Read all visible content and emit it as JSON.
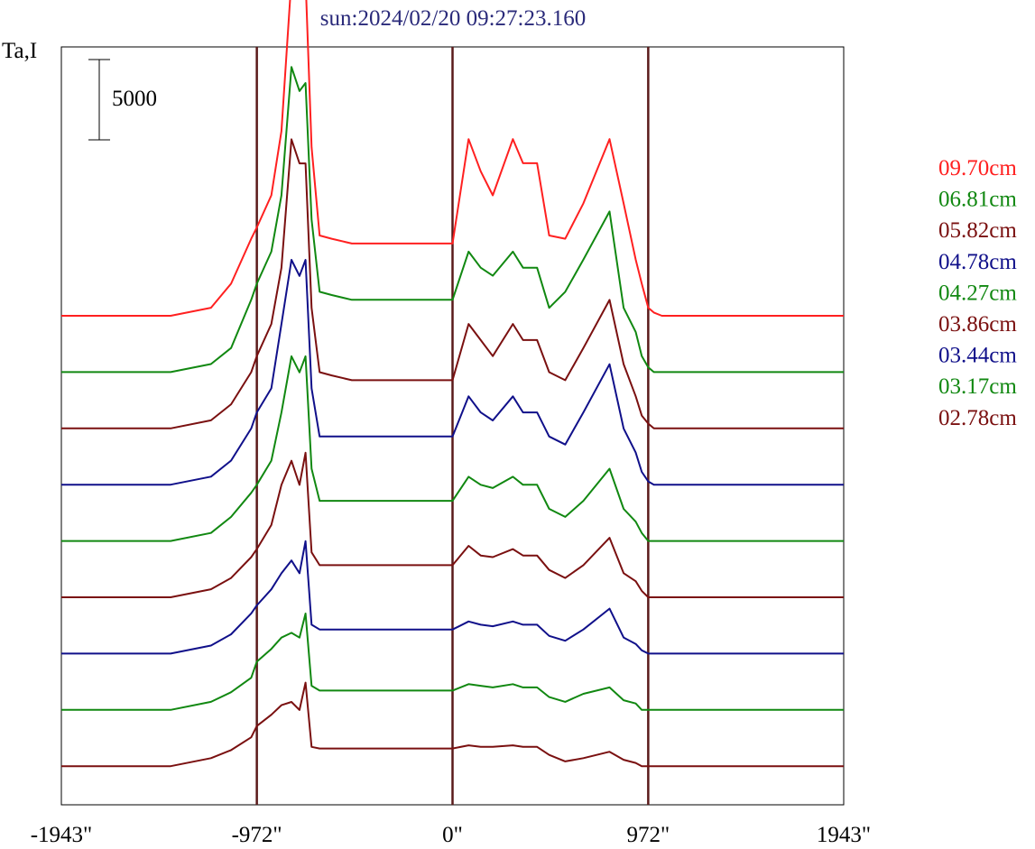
{
  "chart_data": {
    "type": "line",
    "title": "sun:2024/02/20 09:27:23.160",
    "ylabel": "Ta,I",
    "scale_bar": "5000",
    "xlim": [
      -1943,
      1943
    ],
    "x_ticks": [
      "-1943\"",
      "-972\"",
      "0\"",
      "972\"",
      "1943\""
    ],
    "tick_values": [
      -1943,
      -972,
      0,
      972,
      1943
    ],
    "vertical_lines": [
      -972,
      0,
      972
    ],
    "x": [
      -1943,
      -1400,
      -1200,
      -1100,
      -1000,
      -972,
      -900,
      -850,
      -800,
      -760,
      -730,
      -700,
      -660,
      -600,
      -500,
      -300,
      0,
      80,
      140,
      200,
      300,
      350,
      420,
      480,
      560,
      650,
      780,
      850,
      910,
      940,
      972,
      1000,
      1040,
      1080,
      1150,
      1300,
      1943
    ],
    "series": [
      {
        "name": "09.70cm",
        "color": "#ff2020",
        "values": [
          0,
          0,
          500,
          2000,
          4800,
          5500,
          7500,
          11500,
          21000,
          23500,
          21000,
          10500,
          5000,
          4800,
          4500,
          4500,
          4500,
          11000,
          9000,
          7500,
          11000,
          9500,
          9500,
          5000,
          4800,
          7000,
          11000,
          7000,
          3500,
          2000,
          500,
          200,
          0,
          0,
          0,
          0,
          0
        ]
      },
      {
        "name": "06.81cm",
        "color": "#118811",
        "values": [
          0,
          0,
          500,
          1500,
          4500,
          5500,
          7500,
          11000,
          19000,
          17500,
          18000,
          9500,
          5000,
          4800,
          4500,
          4500,
          4500,
          7500,
          6500,
          6000,
          7500,
          6500,
          6500,
          4000,
          5000,
          7000,
          10000,
          4000,
          2500,
          1000,
          300,
          0,
          0,
          0,
          0,
          0,
          0
        ]
      },
      {
        "name": "05.82cm",
        "color": "#7a1010",
        "values": [
          0,
          0,
          500,
          1500,
          3500,
          4500,
          6500,
          10000,
          18000,
          16500,
          16500,
          7500,
          3500,
          3300,
          3000,
          3000,
          3000,
          6500,
          5500,
          4500,
          6500,
          5500,
          5500,
          3500,
          3000,
          5000,
          8000,
          4000,
          2000,
          800,
          300,
          0,
          0,
          0,
          0,
          0,
          0
        ]
      },
      {
        "name": "04.78cm",
        "color": "#10108a",
        "values": [
          0,
          0,
          500,
          1500,
          3500,
          4500,
          6000,
          10000,
          14000,
          13000,
          14000,
          6000,
          3000,
          3000,
          3000,
          3000,
          3000,
          5500,
          4500,
          4000,
          5500,
          4500,
          4500,
          3000,
          2500,
          4500,
          7500,
          3500,
          2000,
          800,
          200,
          0,
          0,
          0,
          0,
          0,
          0
        ]
      },
      {
        "name": "04.27cm",
        "color": "#118811",
        "values": [
          0,
          0,
          500,
          1500,
          3000,
          3500,
          5000,
          8000,
          11500,
          10500,
          11500,
          4500,
          2500,
          2500,
          2500,
          2500,
          2500,
          4000,
          3500,
          3300,
          4000,
          3500,
          3500,
          2000,
          1500,
          2500,
          4500,
          2000,
          1200,
          500,
          0,
          0,
          0,
          0,
          0,
          0,
          0
        ]
      },
      {
        "name": "03.86cm",
        "color": "#7a1010",
        "values": [
          0,
          0,
          500,
          1200,
          2500,
          3000,
          4500,
          7000,
          8500,
          7000,
          9000,
          2800,
          2000,
          2000,
          2000,
          2000,
          2000,
          3200,
          2600,
          2500,
          3000,
          2600,
          2600,
          1700,
          1200,
          2000,
          3700,
          1500,
          1000,
          400,
          0,
          0,
          0,
          0,
          0,
          0,
          0
        ]
      },
      {
        "name": "03.44cm",
        "color": "#10108a",
        "values": [
          0,
          0,
          500,
          1200,
          2500,
          3000,
          4000,
          5000,
          5800,
          5000,
          7000,
          1800,
          1500,
          1500,
          1500,
          1500,
          1500,
          2000,
          1800,
          1700,
          2000,
          1800,
          1800,
          1100,
          800,
          1500,
          2800,
          1000,
          600,
          200,
          0,
          0,
          0,
          0,
          0,
          0,
          0
        ]
      },
      {
        "name": "03.17cm",
        "color": "#118811",
        "values": [
          0,
          0,
          500,
          1100,
          2000,
          3000,
          3800,
          4500,
          4800,
          4500,
          6000,
          1500,
          1200,
          1200,
          1200,
          1200,
          1200,
          1600,
          1500,
          1400,
          1600,
          1400,
          1400,
          800,
          500,
          1000,
          1400,
          600,
          400,
          0,
          0,
          0,
          0,
          0,
          0,
          0,
          0
        ]
      },
      {
        "name": "02.78cm",
        "color": "#7a1010",
        "values": [
          0,
          0,
          500,
          1000,
          1800,
          2500,
          3200,
          3800,
          4000,
          3500,
          5200,
          1200,
          1100,
          1100,
          1100,
          1100,
          1100,
          1300,
          1200,
          1200,
          1300,
          1200,
          1200,
          700,
          300,
          500,
          900,
          400,
          200,
          0,
          0,
          0,
          0,
          0,
          0,
          0,
          0
        ]
      }
    ]
  }
}
